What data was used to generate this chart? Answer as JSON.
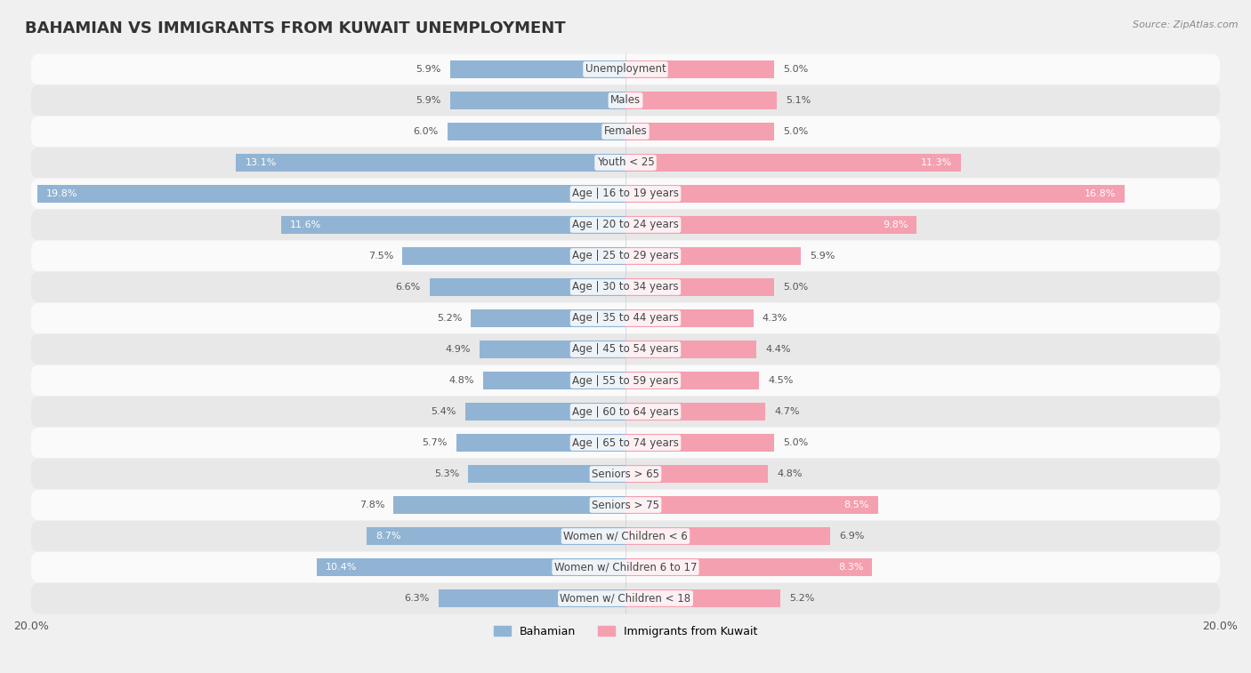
{
  "title": "BAHAMIAN VS IMMIGRANTS FROM KUWAIT UNEMPLOYMENT",
  "source": "Source: ZipAtlas.com",
  "categories": [
    "Unemployment",
    "Males",
    "Females",
    "Youth < 25",
    "Age | 16 to 19 years",
    "Age | 20 to 24 years",
    "Age | 25 to 29 years",
    "Age | 30 to 34 years",
    "Age | 35 to 44 years",
    "Age | 45 to 54 years",
    "Age | 55 to 59 years",
    "Age | 60 to 64 years",
    "Age | 65 to 74 years",
    "Seniors > 65",
    "Seniors > 75",
    "Women w/ Children < 6",
    "Women w/ Children 6 to 17",
    "Women w/ Children < 18"
  ],
  "bahamian": [
    5.9,
    5.9,
    6.0,
    13.1,
    19.8,
    11.6,
    7.5,
    6.6,
    5.2,
    4.9,
    4.8,
    5.4,
    5.7,
    5.3,
    7.8,
    8.7,
    10.4,
    6.3
  ],
  "kuwait": [
    5.0,
    5.1,
    5.0,
    11.3,
    16.8,
    9.8,
    5.9,
    5.0,
    4.3,
    4.4,
    4.5,
    4.7,
    5.0,
    4.8,
    8.5,
    6.9,
    8.3,
    5.2
  ],
  "bahamian_color": "#92b4d4",
  "kuwait_color": "#f4a0b0",
  "bahamian_label": "Bahamian",
  "kuwait_label": "Immigrants from Kuwait",
  "axis_max": 20.0,
  "background_color": "#f0f0f0",
  "row_color_light": "#fafafa",
  "row_color_dark": "#e8e8e8",
  "bar_height": 0.58,
  "title_fontsize": 13,
  "label_fontsize": 8.5,
  "value_fontsize": 8.0,
  "inside_label_threshold": 8.0
}
